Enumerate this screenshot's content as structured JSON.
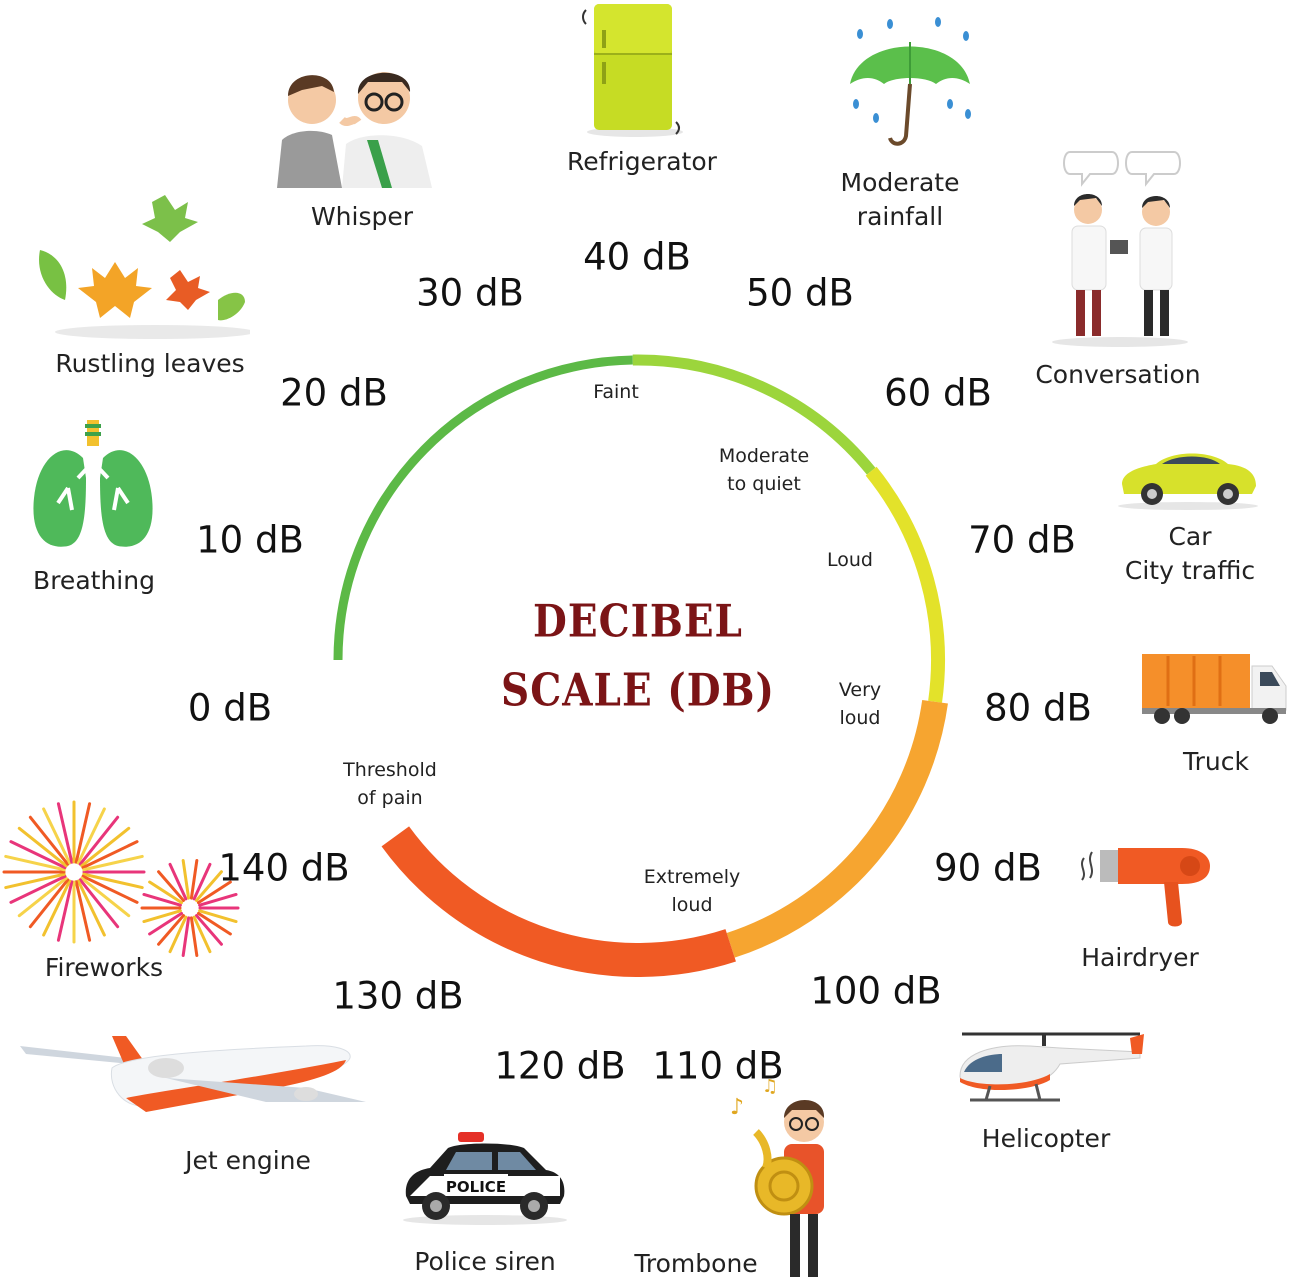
{
  "title": {
    "line1": "DECIBEL",
    "line2": "SCALE (DB)"
  },
  "levels": [
    "0 dB",
    "10 dB",
    "20 dB",
    "30 dB",
    "40 dB",
    "50 dB",
    "60 dB",
    "70 dB",
    "80 dB",
    "90 dB",
    "100 dB",
    "110 dB",
    "120 dB",
    "130 dB",
    "140 dB"
  ],
  "zones": {
    "faint": "Faint",
    "moderate_1": "Moderate",
    "moderate_2": "to quiet",
    "loud": "Loud",
    "very_loud_1": "Very",
    "very_loud_2": "loud",
    "extremely_1": "Extremely",
    "extremely_2": "loud",
    "pain_1": "Threshold",
    "pain_2": "of pain"
  },
  "sources": {
    "breathing": "Breathing",
    "rustling": "Rustling leaves",
    "whisper": "Whisper",
    "refrigerator": "Refrigerator",
    "rain_1": "Moderate",
    "rain_2": "rainfall",
    "conversation": "Conversation",
    "car_1": "Car",
    "car_2": "City traffic",
    "truck": "Truck",
    "hairdryer": "Hairdryer",
    "helicopter": "Helicopter",
    "trombone": "Trombone",
    "police": "Police siren",
    "police_sign": "POLICE",
    "jet": "Jet engine",
    "fireworks": "Fireworks"
  },
  "colors": {
    "green": "#5cb946",
    "light_green": "#9cd53c",
    "yellow": "#e3e22a",
    "orange": "#f6a530",
    "red_orange": "#f05a24",
    "title": "#7b1416"
  },
  "ring_segments": [
    {
      "zone": "faint-green",
      "color": "#5cb946"
    },
    {
      "zone": "faint-lightgreen",
      "color": "#9cd53c"
    },
    {
      "zone": "loud-yellow",
      "color": "#e3e22a"
    },
    {
      "zone": "very-loud-orange",
      "color": "#f6a530"
    },
    {
      "zone": "pain-red",
      "color": "#f05a24"
    }
  ]
}
